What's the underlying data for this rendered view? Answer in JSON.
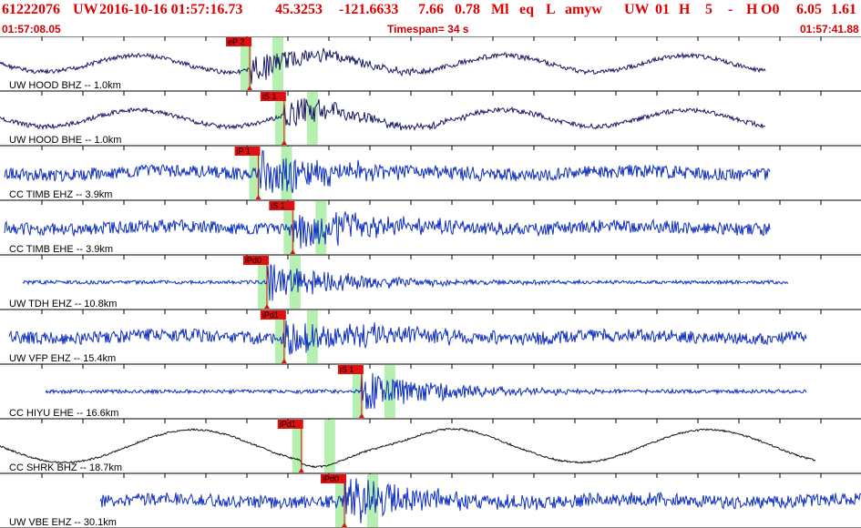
{
  "header": {
    "event_id": "61222076",
    "network": "UW",
    "datetime": "2016-10-16 01:57:16.73",
    "lat": "45.3253",
    "lon": "-121.6633",
    "depth": "7.66",
    "magnitude": "0.78",
    "mag_type": "Ml",
    "event_type": "eq",
    "flag": "L",
    "analyst": "amyw",
    "source": "UW",
    "version": "01",
    "quality_a": "H",
    "quality_b": "5",
    "dash": "-",
    "quality_c": "H",
    "quality_d": "O0",
    "stat_a": "6.05",
    "stat_b": "1.61"
  },
  "timebar": {
    "start_time": "01:57:08.05",
    "timespan": "Timespan=  34 s",
    "end_time": "01:57:41.88"
  },
  "traces": [
    {
      "label": "UW HOOD BHZ -- 1.0km",
      "color": "#1a1a66",
      "picks": [
        {
          "text": "eP 2",
          "pos": 0.29
        }
      ]
    },
    {
      "label": "UW HOOD BHE -- 1.0km",
      "color": "#1a1a66",
      "picks": [
        {
          "text": "iS 1",
          "pos": 0.33
        }
      ]
    },
    {
      "label": "CC TIMB EHZ -- 3.9km",
      "color": "#1030c0",
      "picks": [
        {
          "text": "iP 1",
          "pos": 0.3
        }
      ]
    },
    {
      "label": "CC TIMB EHE -- 3.9km",
      "color": "#1030c0",
      "picks": [
        {
          "text": "iS 1",
          "pos": 0.34
        }
      ]
    },
    {
      "label": "UW TDH EHZ -- 10.8km",
      "color": "#1030c0",
      "picks": [
        {
          "text": "iPd0",
          "pos": 0.31
        }
      ]
    },
    {
      "label": "UW VFP EHZ -- 15.4km",
      "color": "#1030c0",
      "picks": [
        {
          "text": "iPd1",
          "pos": 0.33
        }
      ]
    },
    {
      "label": "CC HIYU EHE -- 16.6km",
      "color": "#1030c0",
      "picks": [
        {
          "text": "iS 1",
          "pos": 0.42
        }
      ]
    },
    {
      "label": "CC SHRK BHZ -- 18.7km",
      "color": "#111111",
      "picks": [
        {
          "text": "iPd1",
          "pos": 0.35
        }
      ]
    },
    {
      "label": "UW VBE EHZ -- 30.1km",
      "color": "#1030c0",
      "picks": [
        {
          "text": "iPd0",
          "pos": 0.4
        }
      ]
    }
  ]
}
